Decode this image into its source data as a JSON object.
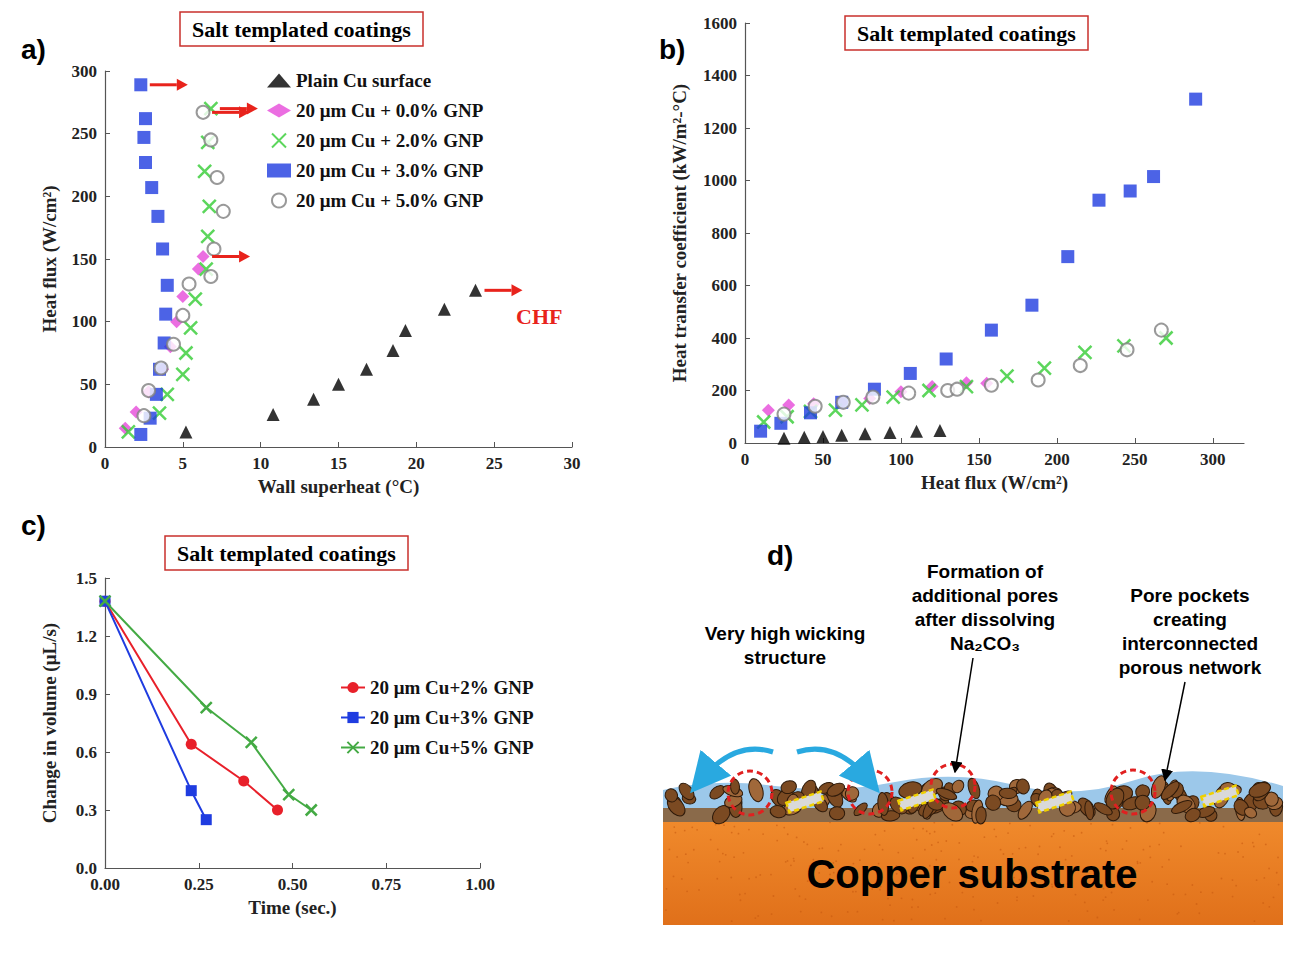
{
  "chart_data": [
    {
      "panel_label": "a)",
      "type": "scatter",
      "title": "Salt templated coatings",
      "x_label": "Wall superheat (°C)",
      "y_label": "Heat flux (W/cm²)",
      "xlim": [
        0,
        30
      ],
      "xticks": [
        0,
        5,
        10,
        15,
        20,
        25,
        30
      ],
      "ylim": [
        0,
        300
      ],
      "yticks": [
        0,
        50,
        100,
        150,
        200,
        250,
        300
      ],
      "grid": false,
      "legend": "upper right",
      "series": [
        {
          "name": "Plain Cu surface",
          "color": "#000000",
          "marker": "triangle",
          "x": [
            5.2,
            10.8,
            13.4,
            15.0,
            16.8,
            18.5,
            19.3,
            21.8,
            23.8
          ],
          "values": [
            12,
            26,
            38,
            50,
            62,
            77,
            93,
            110,
            125
          ]
        },
        {
          "name": "20 μm Cu + 0.0% GNP",
          "color": "#e64ad9",
          "marker": "diamond",
          "x": [
            1.3,
            2.0,
            2.8,
            3.7,
            4.2,
            4.6,
            5.0,
            6.0,
            6.3
          ],
          "values": [
            15,
            28,
            44,
            62,
            80,
            100,
            120,
            142,
            152
          ]
        },
        {
          "name": "20 μm Cu + 2.0% GNP",
          "color": "#33cc33",
          "marker": "x",
          "x": [
            1.5,
            3.5,
            4.0,
            5.0,
            5.2,
            5.5,
            5.8,
            6.5,
            6.6,
            6.7,
            6.4,
            6.6,
            6.8
          ],
          "values": [
            12,
            27,
            42,
            58,
            75,
            95,
            118,
            142,
            168,
            192,
            220,
            243,
            270
          ]
        },
        {
          "name": "20 μm Cu + 3.0% GNP",
          "color": "#1f3ce0",
          "marker": "square",
          "x": [
            2.3,
            2.9,
            3.3,
            3.5,
            3.8,
            3.9,
            4.0,
            3.7,
            3.4,
            3.0,
            2.6,
            2.5,
            2.6,
            2.3
          ],
          "values": [
            10,
            23,
            42,
            62,
            83,
            106,
            129,
            158,
            184,
            207,
            227,
            247,
            262,
            289
          ]
        },
        {
          "name": "20 μm Cu + 5.0% GNP",
          "color": "#7f7f7f",
          "marker": "open_circle",
          "x": [
            2.5,
            2.8,
            3.6,
            4.4,
            5.0,
            5.4,
            6.8,
            7.0,
            7.6,
            7.2,
            6.8,
            6.3
          ],
          "values": [
            25,
            45,
            63,
            82,
            105,
            130,
            136,
            158,
            188,
            215,
            245,
            267
          ]
        }
      ],
      "annotations": [
        {
          "text": "CHF",
          "x": 27.9,
          "y": 104,
          "color": "#e8231c"
        }
      ]
    },
    {
      "panel_label": "b)",
      "type": "scatter",
      "title": "Salt templated coatings",
      "x_label": "Heat flux (W/cm²)",
      "y_label": "Heat transfer coefficient (kW/m²-°C)",
      "xlim": [
        0,
        320
      ],
      "xticks": [
        0,
        50,
        100,
        150,
        200,
        250,
        300
      ],
      "ylim": [
        0,
        1600
      ],
      "yticks": [
        0,
        200,
        400,
        600,
        800,
        1000,
        1200,
        1400,
        1600
      ],
      "grid": false,
      "series": [
        {
          "name": "Plain Cu surface",
          "color": "#000000",
          "marker": "triangle",
          "x": [
            25,
            38,
            50,
            62,
            77,
            93,
            110,
            125
          ],
          "values": [
            18,
            22,
            25,
            30,
            35,
            40,
            45,
            48
          ]
        },
        {
          "name": "20 μm Cu + 0.0% GNP",
          "color": "#e64ad9",
          "marker": "diamond",
          "x": [
            15,
            28,
            44,
            62,
            80,
            100,
            120,
            142,
            155
          ],
          "values": [
            125,
            145,
            150,
            155,
            170,
            195,
            215,
            230,
            228
          ]
        },
        {
          "name": "20 μm Cu + 2.0% GNP",
          "color": "#33cc33",
          "marker": "x",
          "x": [
            12,
            27,
            42,
            58,
            75,
            95,
            118,
            142,
            168,
            192,
            218,
            243,
            270
          ],
          "values": [
            80,
            100,
            120,
            125,
            145,
            175,
            200,
            215,
            255,
            285,
            345,
            370,
            400
          ]
        },
        {
          "name": "20 μm Cu + 3.0% GNP",
          "color": "#1f3ce0",
          "marker": "square",
          "x": [
            10,
            23,
            42,
            62,
            83,
            106,
            129,
            158,
            184,
            207,
            227,
            247,
            262,
            289
          ],
          "values": [
            45,
            75,
            115,
            155,
            205,
            265,
            320,
            430,
            525,
            710,
            925,
            960,
            1015,
            1310
          ]
        },
        {
          "name": "20 μm Cu + 5.0% GNP",
          "color": "#7f7f7f",
          "marker": "open_circle",
          "x": [
            25,
            45,
            63,
            82,
            105,
            130,
            136,
            158,
            188,
            215,
            245,
            267
          ],
          "values": [
            110,
            140,
            155,
            175,
            190,
            200,
            205,
            220,
            240,
            295,
            355,
            430
          ]
        }
      ]
    },
    {
      "panel_label": "c)",
      "type": "line",
      "title": "Salt templated coatings",
      "x_label": "Time (sec.)",
      "y_label": "Change in volume (μL/s)",
      "xlim": [
        0,
        1
      ],
      "xticks": [
        {
          "value": 0,
          "label": "0.00"
        },
        0.25,
        {
          "value": 0.5,
          "label": "0.50"
        },
        0.75,
        {
          "value": 1,
          "label": "1.00"
        }
      ],
      "ylim": [
        0,
        1.5
      ],
      "yticks": [
        {
          "value": 0,
          "label": "0.0"
        },
        0.3,
        0.6,
        0.9,
        1.2,
        1.5
      ],
      "grid": false,
      "legend": "right",
      "series": [
        {
          "name": "20 μm Cu+2% GNP",
          "color": "#e8202a",
          "marker": "circle",
          "x": [
            0,
            0.23,
            0.37,
            0.46
          ],
          "values": [
            1.38,
            0.64,
            0.45,
            0.3
          ]
        },
        {
          "name": "20 μm Cu+3% GNP",
          "color": "#1f3ce0",
          "marker": "square",
          "x": [
            0,
            0.23,
            0.27
          ],
          "values": [
            1.38,
            0.4,
            0.25
          ]
        },
        {
          "name": "20 μm Cu+5% GNP",
          "color": "#44aa44",
          "marker": "x",
          "x": [
            0,
            0.27,
            0.39,
            0.49,
            0.55
          ],
          "values": [
            1.38,
            0.83,
            0.65,
            0.38,
            0.3
          ]
        }
      ]
    }
  ],
  "diagram": {
    "panel_label": "d)",
    "labels": [
      "Very high wicking structure",
      "Formation of additional pores after dissolving Na₂CO₃",
      "Pore pockets creating interconnected porous network"
    ],
    "substrate": "Copper substrate"
  }
}
